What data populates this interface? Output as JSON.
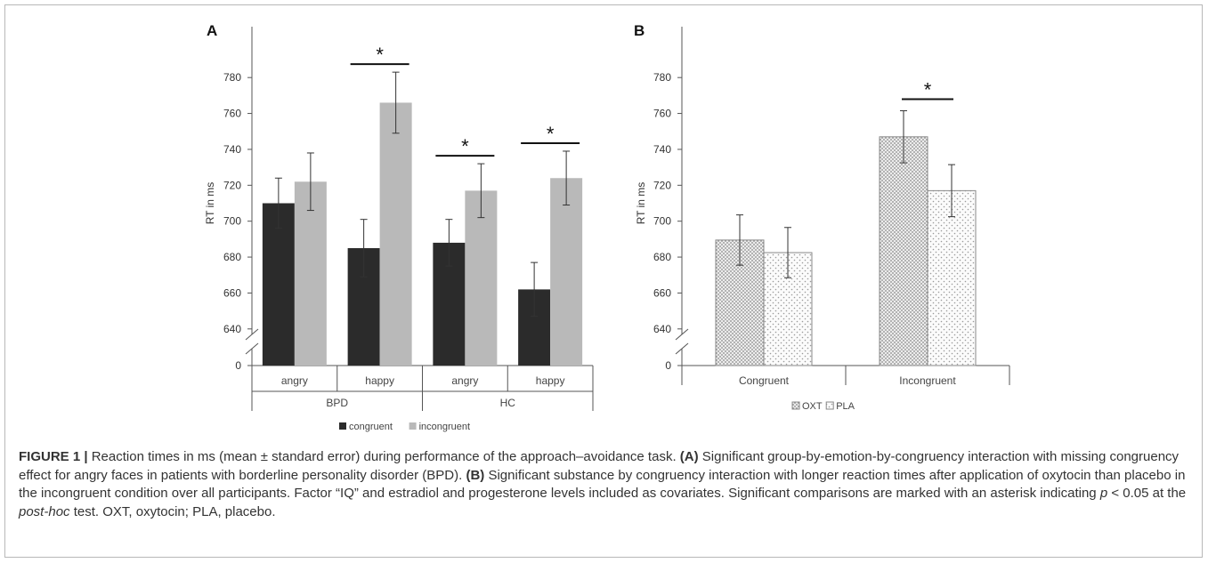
{
  "chart_data": [
    {
      "type": "bar",
      "panel_label": "A",
      "ylabel": "RT in ms",
      "ylim": [
        630,
        790
      ],
      "yticks": [
        640,
        660,
        680,
        700,
        720,
        740,
        760,
        780
      ],
      "axis_break_label": "0",
      "categories": [
        "angry",
        "happy",
        "angry",
        "happy"
      ],
      "groups": [
        {
          "label": "BPD",
          "categories": [
            "angry",
            "happy"
          ]
        },
        {
          "label": "HC",
          "categories": [
            "angry",
            "happy"
          ]
        }
      ],
      "series": [
        {
          "name": "congruent",
          "color": "#2b2b2b",
          "values": [
            710,
            685,
            688,
            662
          ],
          "errors": [
            14,
            16,
            13,
            15
          ]
        },
        {
          "name": "incongruent",
          "color": "#b9b9b9",
          "values": [
            722,
            766,
            717,
            724
          ],
          "errors": [
            16,
            17,
            15,
            15
          ]
        }
      ],
      "significance_marker": "*",
      "significance_categories": [
        1,
        2,
        3
      ],
      "legend_position": "bottom"
    },
    {
      "type": "bar",
      "panel_label": "B",
      "ylabel": "RT in ms",
      "ylim": [
        630,
        790
      ],
      "yticks": [
        640,
        660,
        680,
        700,
        720,
        740,
        760,
        780
      ],
      "axis_break_label": "0",
      "categories": [
        "Congruent",
        "Incongruent"
      ],
      "series": [
        {
          "name": "OXT",
          "pattern": "dense-dots",
          "values": [
            689.5,
            747
          ],
          "errors": [
            14,
            14.5
          ]
        },
        {
          "name": "PLA",
          "pattern": "sparse-dots",
          "values": [
            682.5,
            717
          ],
          "errors": [
            14,
            14.5
          ]
        }
      ],
      "significance_marker": "*",
      "significance_categories": [
        1
      ],
      "legend_position": "bottom"
    }
  ],
  "caption": {
    "label": "FIGURE 1 |",
    "part1": " Reaction times in ms (mean ± standard error) during performance of the approach–avoidance task. ",
    "a_marker": "(A)",
    "part2": " Significant group-by-emotion-by-congruency interaction with missing congruency effect for angry faces in patients with borderline personality disorder (BPD). ",
    "b_marker": "(B)",
    "part3": " Significant substance by congruency interaction with longer reaction times after application of oxytocin than placebo in the incongruent condition over all participants. Factor “IQ” and estradiol and progesterone levels included as covariates. Significant comparisons are marked with an asterisk indicating ",
    "p_symbol": "p",
    "part4": " < 0.05 at the ",
    "posthoc": "post-hoc",
    "part5": " test. OXT, oxytocin; PLA, placebo."
  }
}
